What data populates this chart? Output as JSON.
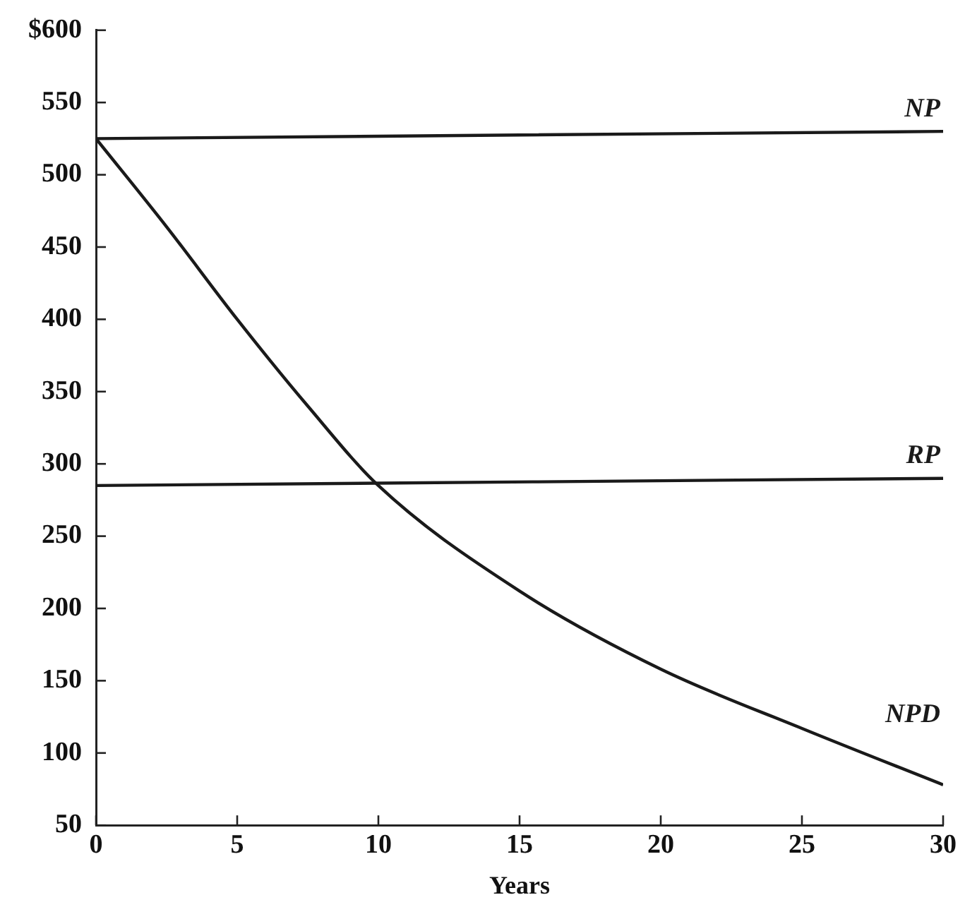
{
  "chart_data": {
    "type": "line",
    "xlabel": "Years",
    "xlim": [
      0,
      30
    ],
    "xticks": [
      0,
      5,
      10,
      15,
      20,
      25,
      30
    ],
    "ylim": [
      50,
      600
    ],
    "yticks": [
      50,
      100,
      150,
      200,
      250,
      300,
      350,
      400,
      450,
      500,
      550,
      {
        "value": 600,
        "label": "$600"
      }
    ],
    "grid": false,
    "legend": false,
    "marker": "none",
    "line_style": "solid",
    "series": [
      {
        "name": "NP",
        "color": "#1a1a1a",
        "x": [
          0,
          30
        ],
        "values": [
          525,
          530
        ]
      },
      {
        "name": "RP",
        "color": "#1a1a1a",
        "x": [
          0,
          30
        ],
        "values": [
          285,
          290
        ]
      },
      {
        "name": "NPD",
        "color": "#1a1a1a",
        "x": [
          0,
          2.5,
          5,
          7.5,
          10,
          15,
          20,
          25,
          30
        ],
        "values": [
          525,
          464,
          400,
          340,
          285,
          212,
          158,
          117,
          78
        ]
      }
    ]
  }
}
